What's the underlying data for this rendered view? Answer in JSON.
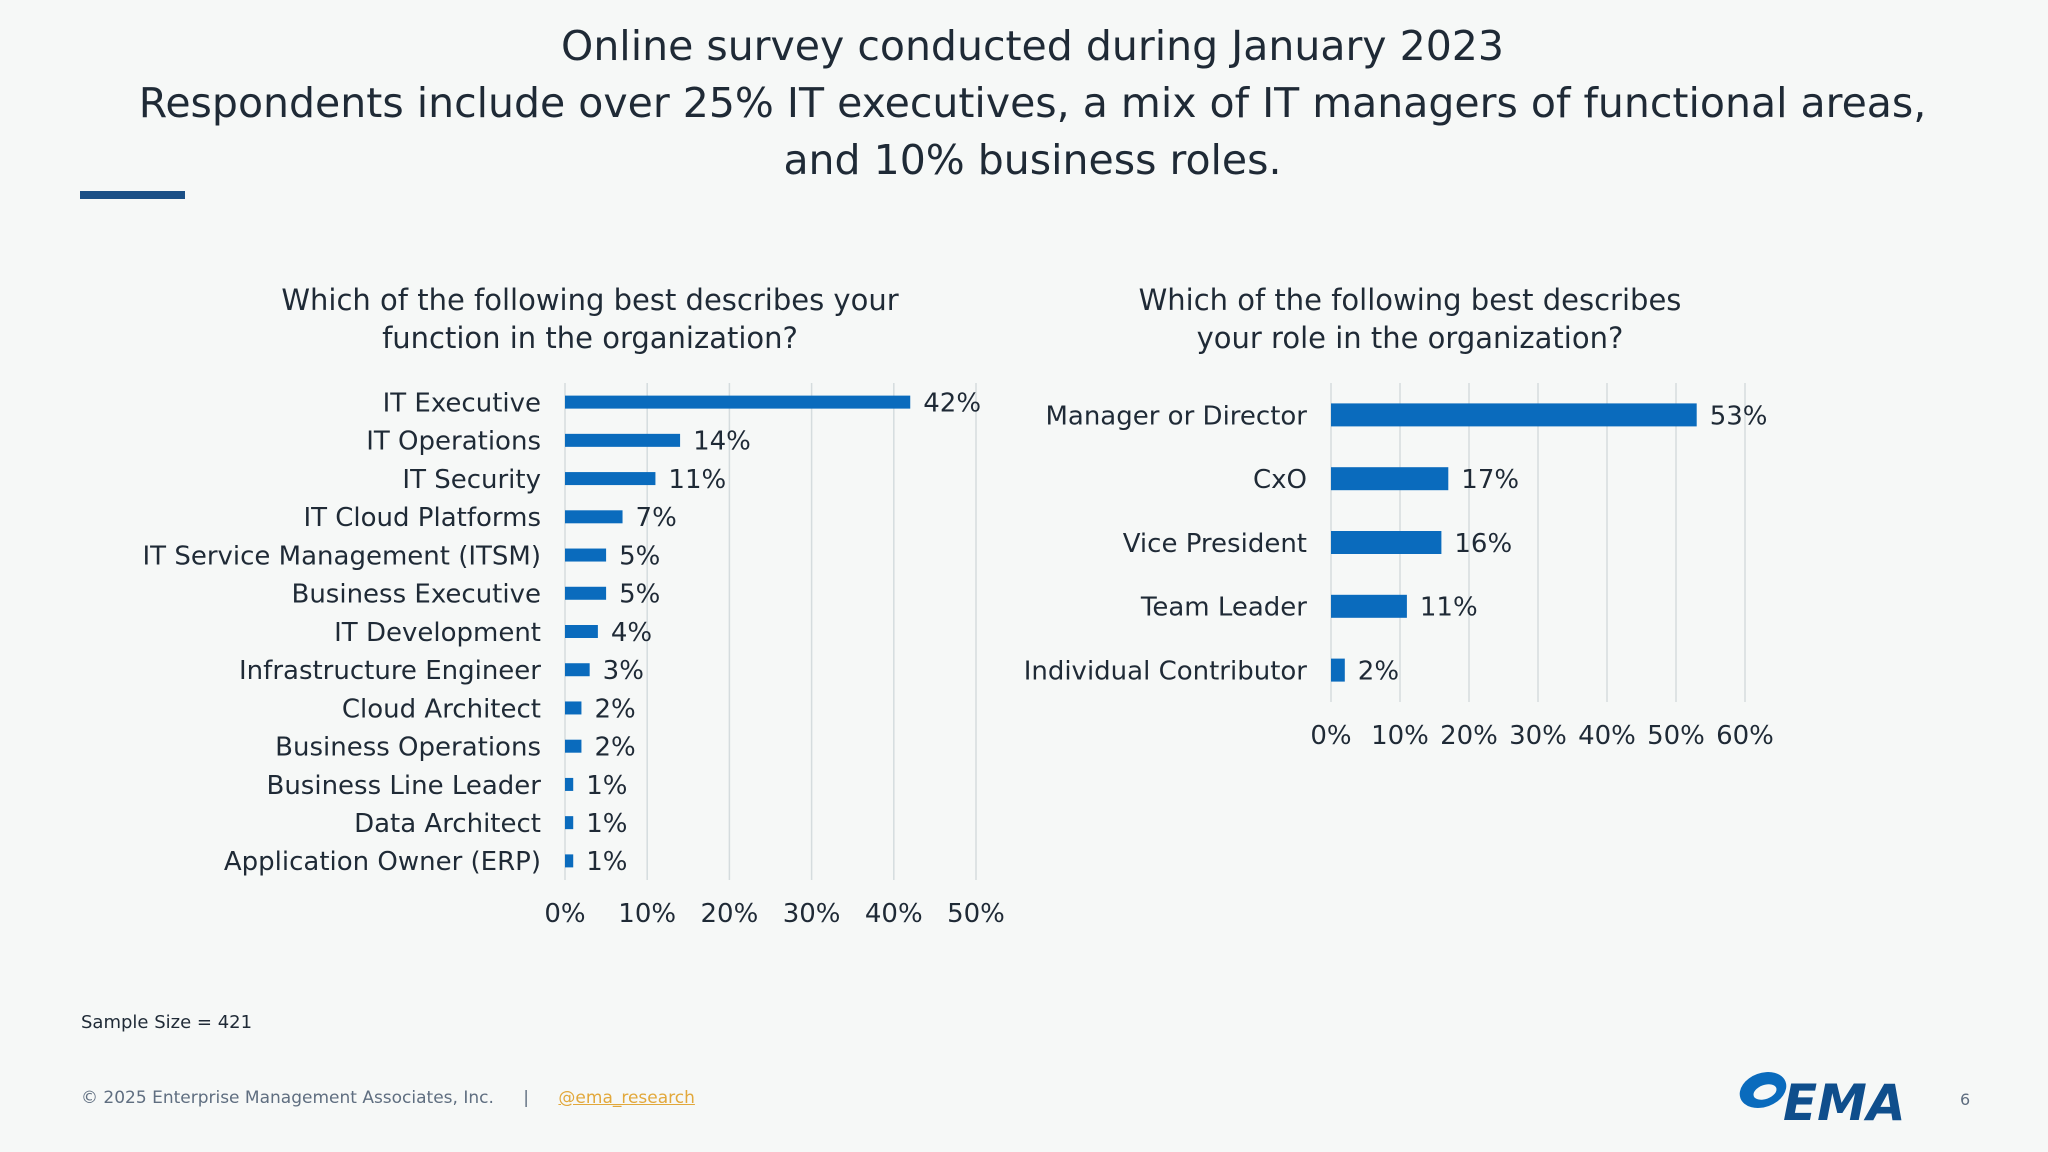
{
  "slide": {
    "title_lines": [
      "Online survey conducted during January 2023",
      "Respondents include over 25% IT executives, a mix of IT managers of functional areas,",
      "and 10% business roles."
    ],
    "sample_size": "Sample Size = 421",
    "copyright": "© 2025 Enterprise Management Associates, Inc.",
    "separator": "|",
    "handle": "@ema_research",
    "logo_text": "EMA",
    "page_number": "6",
    "bar_color": "#0a6bbd"
  },
  "chart_data": [
    {
      "type": "bar",
      "orientation": "horizontal",
      "title_lines": [
        "Which of the following best describes your",
        "function in the organization?"
      ],
      "categories": [
        "IT Executive",
        "IT Operations",
        "IT Security",
        "IT Cloud Platforms",
        "IT Service Management (ITSM)",
        "Business Executive",
        "IT Development",
        "Infrastructure Engineer",
        "Cloud Architect",
        "Business Operations",
        "Business Line Leader",
        "Data Architect",
        "Application Owner (ERP)"
      ],
      "values": [
        42,
        14,
        11,
        7,
        5,
        5,
        4,
        3,
        2,
        2,
        1,
        1,
        1
      ],
      "value_labels": [
        "42%",
        "14%",
        "11%",
        "7%",
        "5%",
        "5%",
        "4%",
        "3%",
        "2%",
        "2%",
        "1%",
        "1%",
        "1%"
      ],
      "xlim": [
        0,
        50
      ],
      "xticks": [
        "0%",
        "10%",
        "20%",
        "30%",
        "40%",
        "50%"
      ],
      "grid": true,
      "xlabel": "",
      "ylabel": ""
    },
    {
      "type": "bar",
      "orientation": "horizontal",
      "title_lines": [
        "Which of the following best describes",
        "your role in the organization?"
      ],
      "categories": [
        "Manager or Director",
        "CxO",
        "Vice President",
        "Team Leader",
        "Individual Contributor"
      ],
      "values": [
        53,
        17,
        16,
        11,
        2
      ],
      "value_labels": [
        "53%",
        "17%",
        "16%",
        "11%",
        "2%"
      ],
      "xlim": [
        0,
        60
      ],
      "xticks": [
        "0%",
        "10%",
        "20%",
        "30%",
        "40%",
        "50%",
        "60%"
      ],
      "grid": true,
      "xlabel": "",
      "ylabel": ""
    }
  ]
}
